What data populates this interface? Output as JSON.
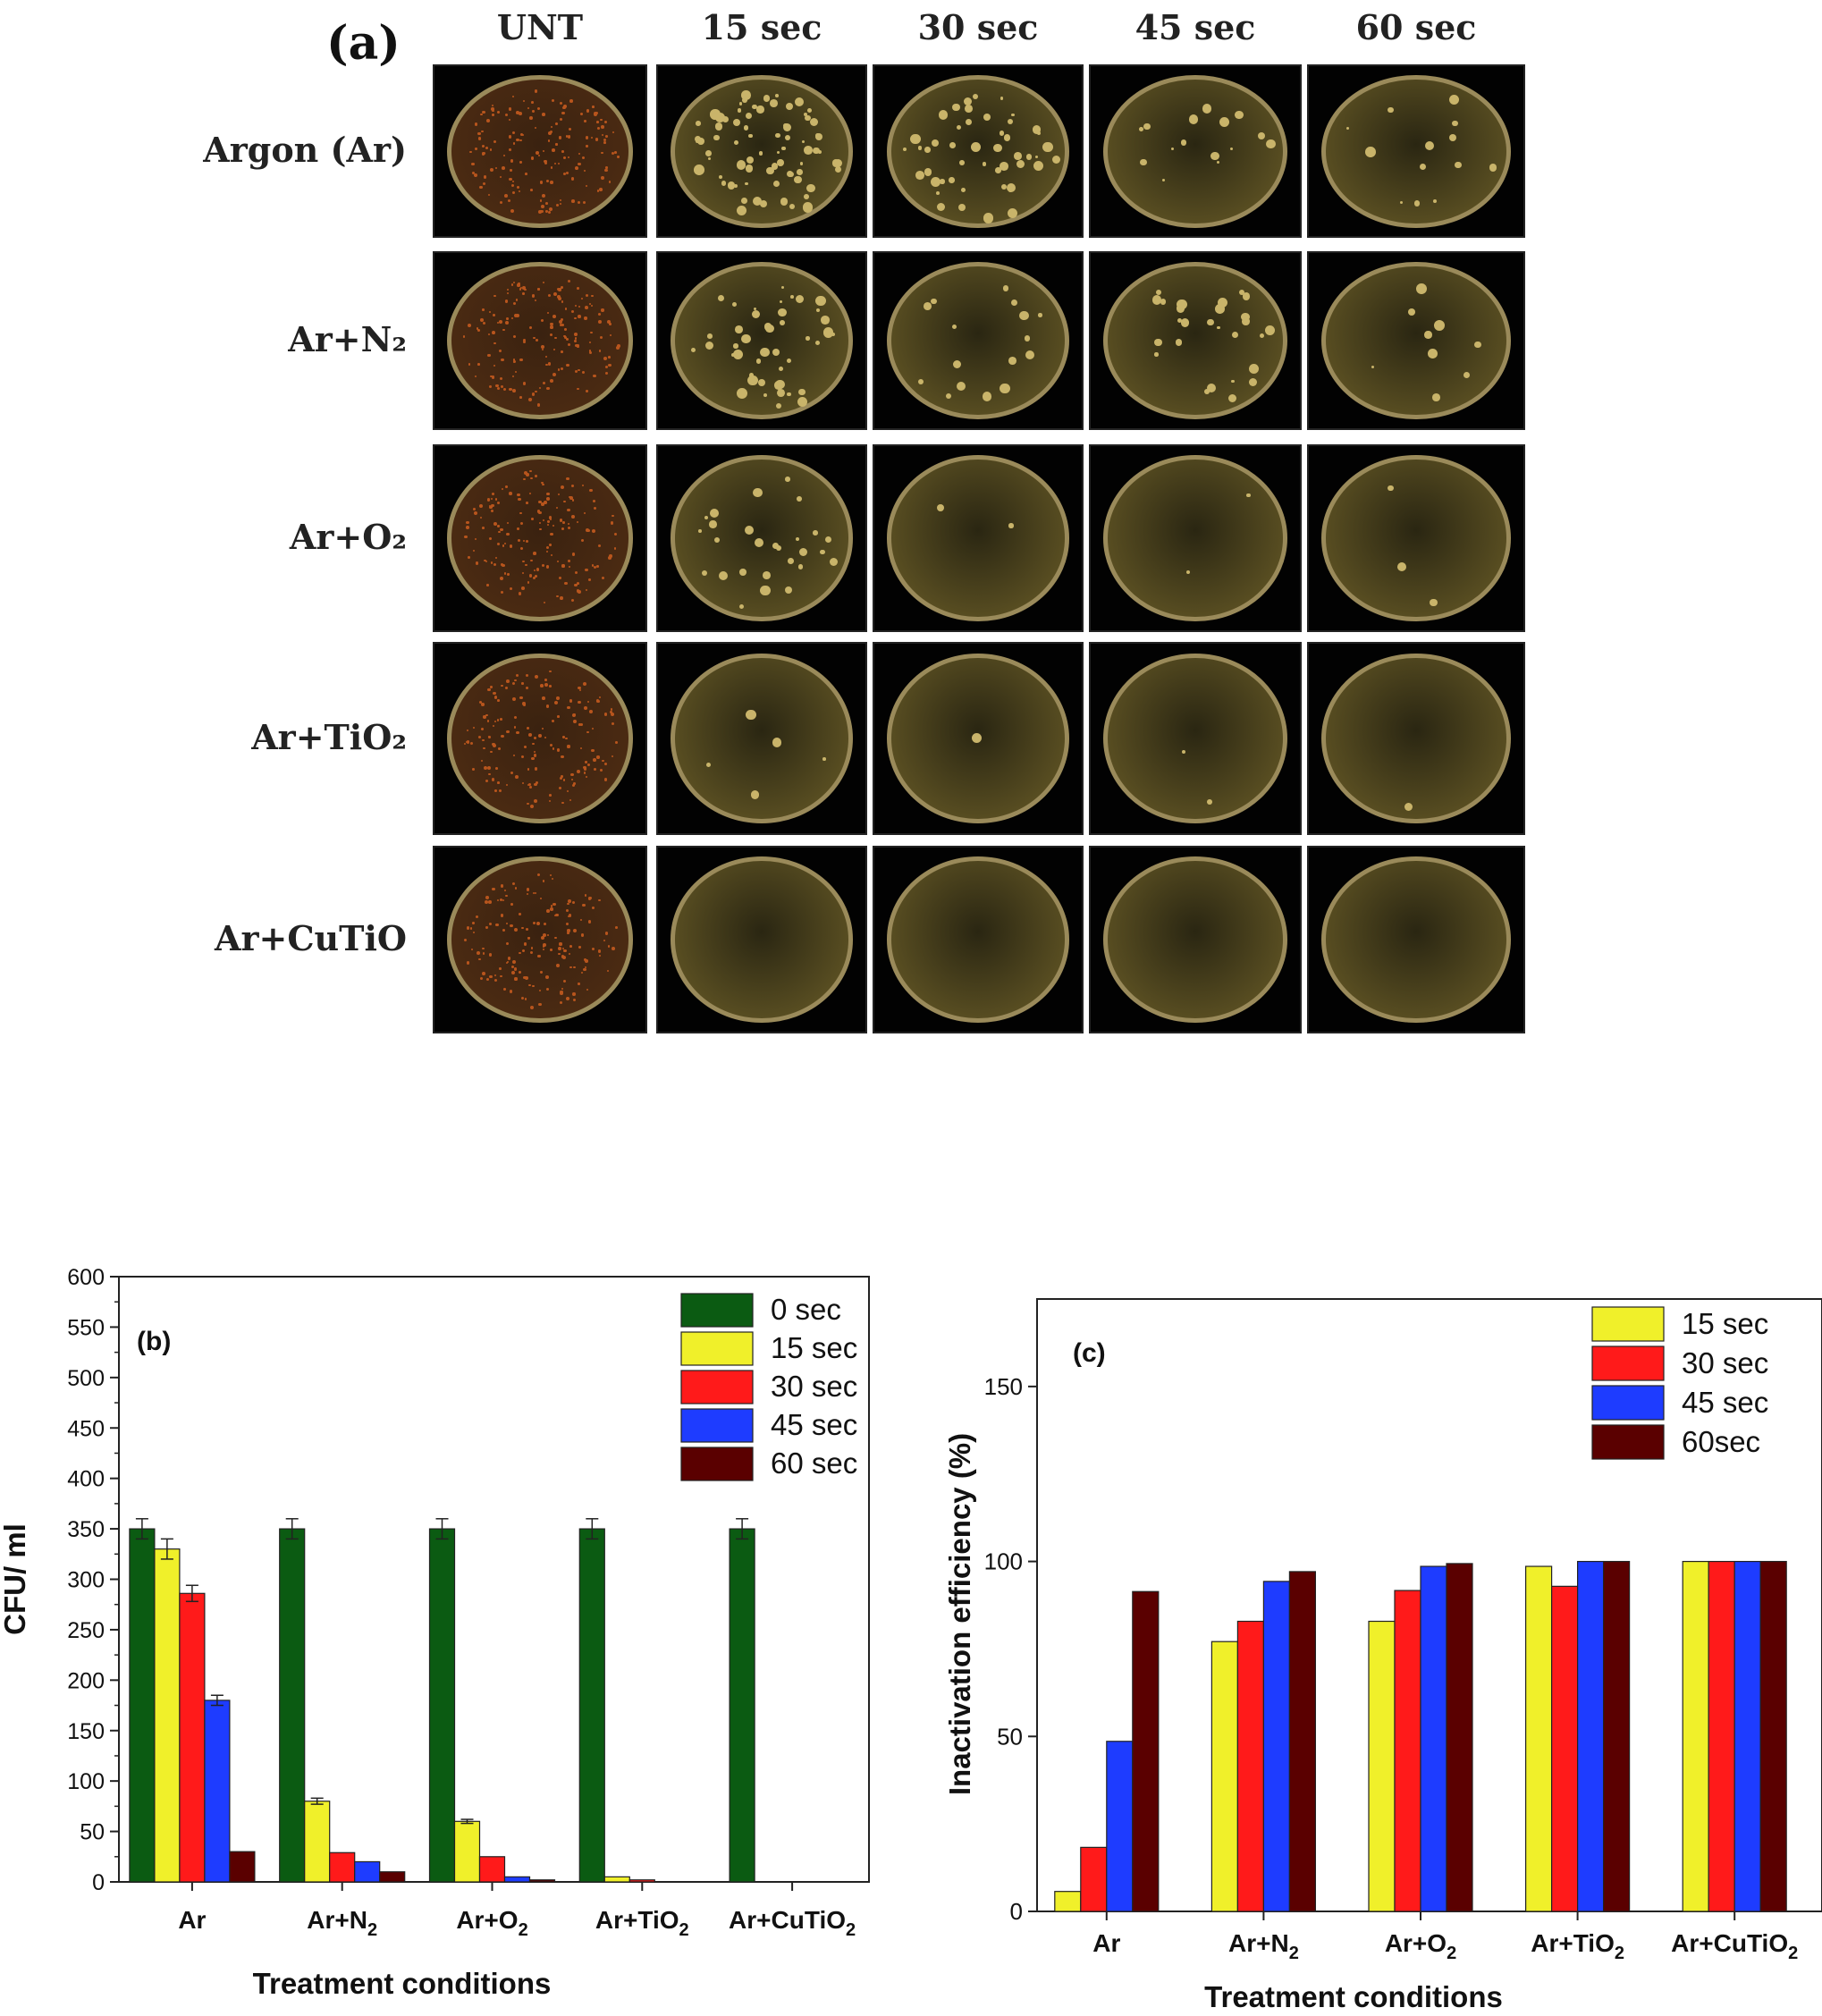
{
  "panel_a": {
    "label": "(a)",
    "columns": [
      "UNT",
      "15 sec",
      "30 sec",
      "45 sec",
      "60 sec"
    ],
    "rows": [
      "Argon (Ar)",
      "Ar+N₂",
      "Ar+O₂",
      "Ar+TiO₂",
      "Ar+CuTiO"
    ],
    "colony_density": [
      [
        1.0,
        0.85,
        0.55,
        0.18,
        0.14
      ],
      [
        1.0,
        0.5,
        0.18,
        0.3,
        0.1
      ],
      [
        1.0,
        0.3,
        0.02,
        0.02,
        0.03
      ],
      [
        1.0,
        0.05,
        0.01,
        0.02,
        0.01
      ],
      [
        1.0,
        0.0,
        0.0,
        0.0,
        0.0
      ]
    ],
    "colors": {
      "untreated_dish": "#4a2a12",
      "treated_dish": "#5a4f22",
      "colony": "#c9b46a",
      "untreated_colony": "#b8551d"
    }
  },
  "chart_data": [
    {
      "type": "bar",
      "panel_label": "(b)",
      "categories": [
        "Ar",
        "Ar+N2",
        "Ar+O2",
        "Ar+TiO2",
        "Ar+CuTiO2"
      ],
      "category_labels": [
        {
          "main": "Ar",
          "sub": ""
        },
        {
          "main": "Ar+N",
          "sub": "2"
        },
        {
          "main": "Ar+O",
          "sub": "2"
        },
        {
          "main": "Ar+TiO",
          "sub": "2"
        },
        {
          "main": "Ar+CuTiO",
          "sub": "2"
        }
      ],
      "series": [
        {
          "name": "0  sec",
          "color": "#0b5b12",
          "values": [
            350,
            350,
            350,
            350,
            350
          ],
          "errors": [
            10,
            10,
            10,
            10,
            10
          ]
        },
        {
          "name": "15 sec",
          "color": "#f0f02a",
          "values": [
            330,
            80,
            60,
            5,
            0
          ],
          "errors": [
            10,
            3,
            2,
            0,
            0
          ]
        },
        {
          "name": "30 sec",
          "color": "#ff1a1a",
          "values": [
            286,
            29,
            25,
            2,
            0
          ],
          "errors": [
            8,
            0,
            0,
            0,
            0
          ]
        },
        {
          "name": "45 sec",
          "color": "#1e3cff",
          "values": [
            180,
            20,
            5,
            0,
            0
          ],
          "errors": [
            5,
            0,
            0,
            0,
            0
          ]
        },
        {
          "name": "60 sec",
          "color": "#5a0000",
          "values": [
            30,
            10,
            2,
            0,
            0
          ],
          "errors": [
            0,
            0,
            0,
            0,
            0
          ]
        }
      ],
      "xlabel": "Treatment conditions",
      "ylabel": "CFU/ ml",
      "ylim": [
        0,
        600
      ],
      "yticks": [
        0,
        50,
        100,
        150,
        200,
        250,
        300,
        350,
        400,
        450,
        500,
        550,
        600
      ],
      "legend": "top-right"
    },
    {
      "type": "bar",
      "panel_label": "(c)",
      "categories": [
        "Ar",
        "Ar+N2",
        "Ar+O2",
        "Ar+TiO2",
        "Ar+CuTiO2"
      ],
      "category_labels": [
        {
          "main": "Ar",
          "sub": ""
        },
        {
          "main": "Ar+N",
          "sub": "2"
        },
        {
          "main": "Ar+O",
          "sub": "2"
        },
        {
          "main": "Ar+TiO",
          "sub": "2"
        },
        {
          "main": "Ar+CuTiO",
          "sub": "2"
        }
      ],
      "series": [
        {
          "name": "15  sec",
          "color": "#f0f02a",
          "values": [
            5.7,
            77.1,
            82.9,
            98.6,
            100
          ]
        },
        {
          "name": "30 sec",
          "color": "#ff1a1a",
          "values": [
            18.3,
            82.9,
            91.7,
            92.9,
            100
          ]
        },
        {
          "name": "45 sec",
          "color": "#1e3cff",
          "values": [
            48.6,
            94.3,
            98.6,
            100,
            100
          ]
        },
        {
          "name": "60sec",
          "color": "#5a0000",
          "values": [
            91.4,
            97.1,
            99.4,
            100,
            100
          ]
        }
      ],
      "xlabel": "Treatment conditions",
      "ylabel": "Inactivation efficiency (%)",
      "ylim": [
        0,
        175
      ],
      "yticks": [
        0,
        50,
        100,
        150
      ],
      "legend": "top-right"
    }
  ]
}
